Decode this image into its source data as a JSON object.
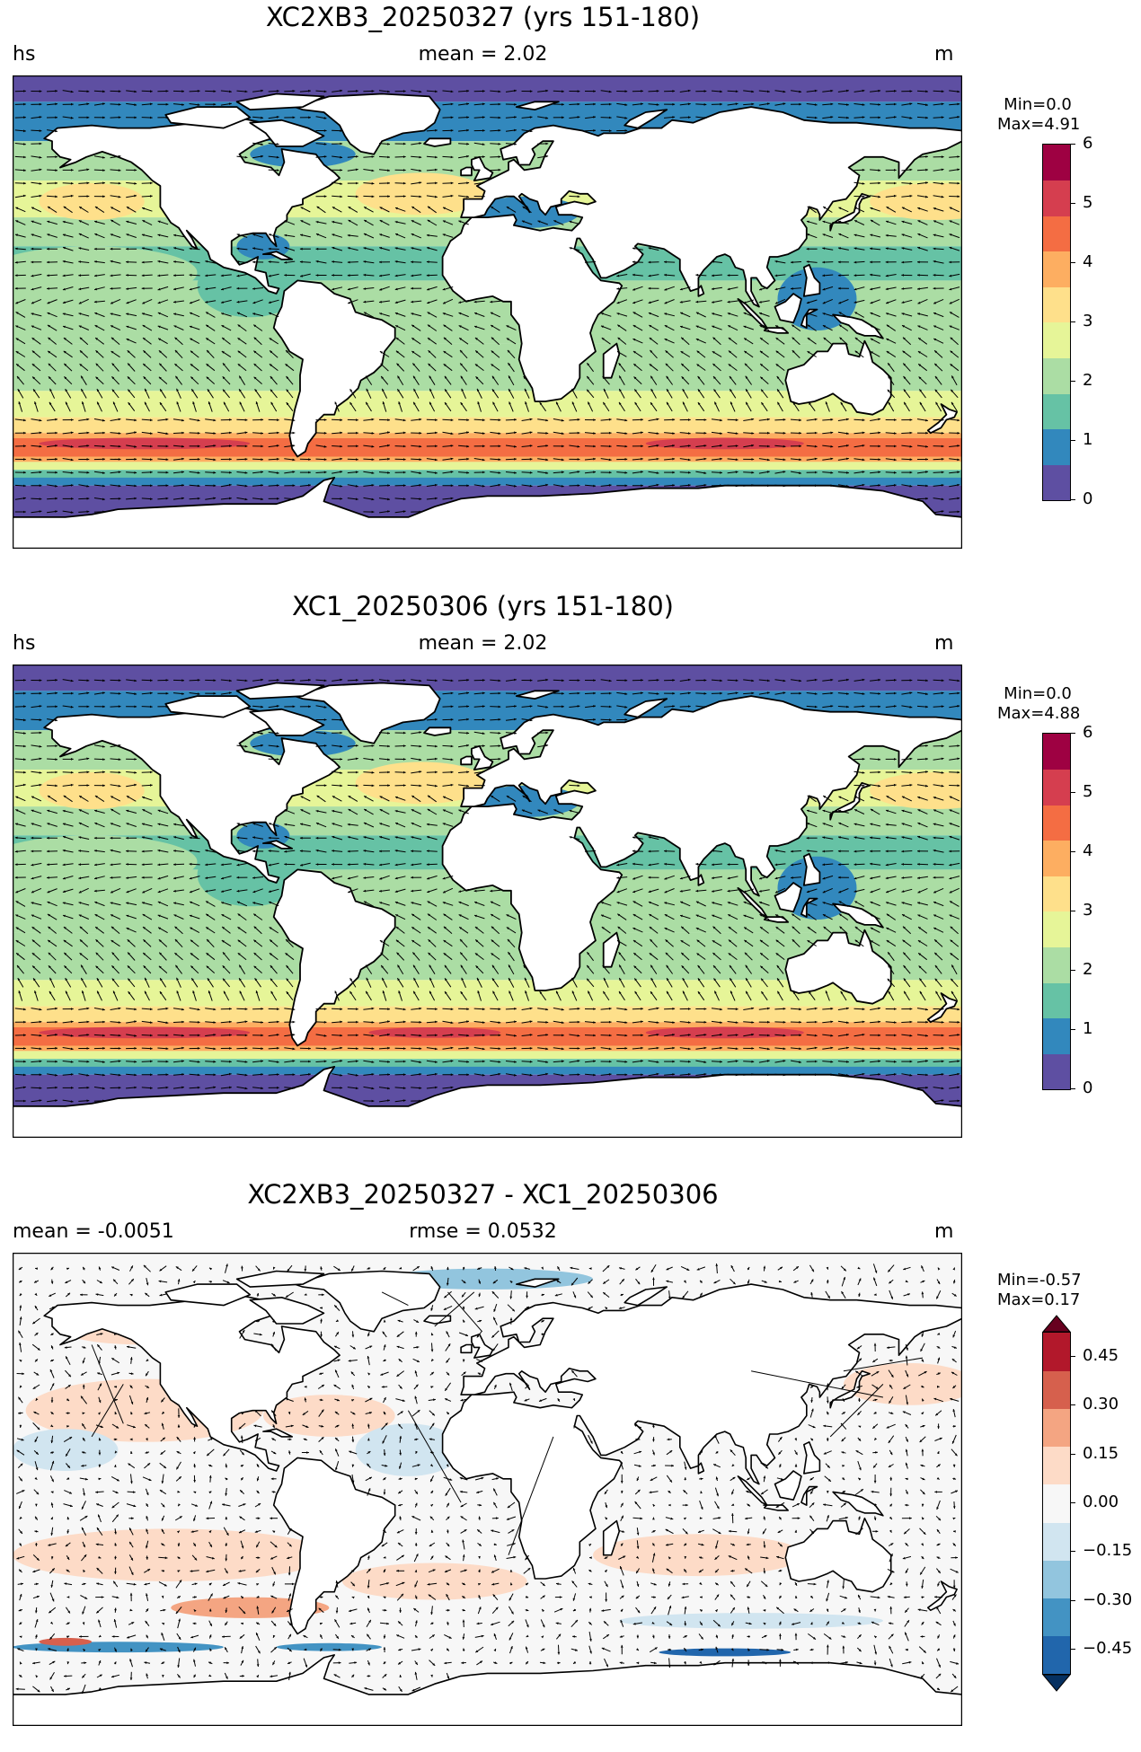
{
  "panels": [
    {
      "title": "XC2XB3_20250327 (yrs 151-180)",
      "left_label": "hs",
      "center_label": "mean = 2.02",
      "right_label": "m",
      "min_label": "Min=0.0",
      "max_label": "Max=4.91",
      "colorbar": {
        "ticks": [
          "0",
          "1",
          "2",
          "3",
          "4",
          "5",
          "6"
        ],
        "colors": [
          "#5e4fa2",
          "#3288bd",
          "#66c2a5",
          "#abdda4",
          "#e6f598",
          "#fee08b",
          "#fdae61",
          "#f46d43",
          "#d53e4f",
          "#9e0142"
        ]
      }
    },
    {
      "title": "XC1_20250306 (yrs 151-180)",
      "left_label": "hs",
      "center_label": "mean = 2.02",
      "right_label": "m",
      "min_label": "Min=0.0",
      "max_label": "Max=4.88",
      "colorbar": {
        "ticks": [
          "0",
          "1",
          "2",
          "3",
          "4",
          "5",
          "6"
        ],
        "colors": [
          "#5e4fa2",
          "#3288bd",
          "#66c2a5",
          "#abdda4",
          "#e6f598",
          "#fee08b",
          "#fdae61",
          "#f46d43",
          "#d53e4f",
          "#9e0142"
        ]
      }
    },
    {
      "title": "XC2XB3_20250327 - XC1_20250306",
      "left_label": "mean = -0.0051",
      "center_label": "rmse = 0.0532",
      "right_label": "m",
      "min_label": "Min=-0.57",
      "max_label": "Max=0.17",
      "colorbar": {
        "ticks": [
          "−0.45",
          "−0.30",
          "−0.15",
          "0.00",
          "0.15",
          "0.30",
          "0.45"
        ],
        "colors": [
          "#053061",
          "#2166ac",
          "#4393c3",
          "#92c5de",
          "#d1e5f0",
          "#f7f7f7",
          "#fddbc7",
          "#f4a582",
          "#d6604d",
          "#b2182b",
          "#67001f"
        ]
      }
    }
  ]
}
